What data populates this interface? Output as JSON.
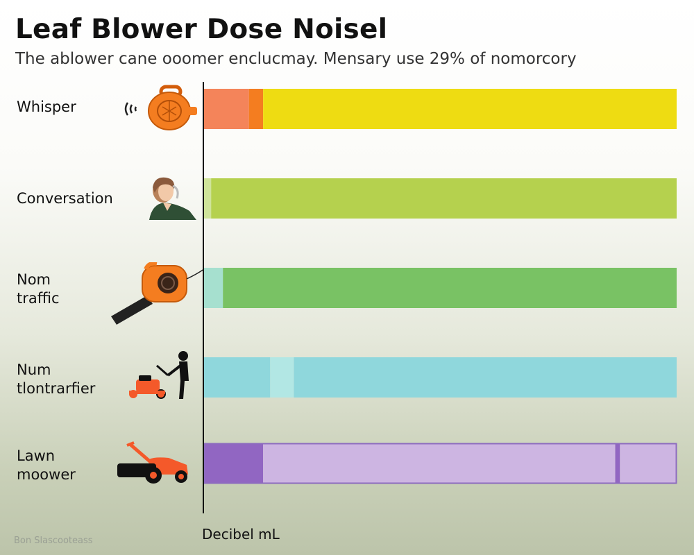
{
  "chart_data": {
    "type": "bar",
    "title": "Leaf Blower Dose Noisel",
    "subtitle": "The ablower cane ooomer enclucmay. Mensary use 29% of nomorcory",
    "xlabel": "Decibel mL",
    "ylabel": "",
    "categories": [
      "Whisper",
      "Conversation",
      "Nom traffic",
      "Num tlontrarfier",
      "Lawn moower"
    ],
    "category_lines": [
      [
        "Whisper"
      ],
      [
        "Conversation"
      ],
      [
        "Nom",
        "traffic"
      ],
      [
        "Num",
        "tlontrarfier"
      ],
      [
        "Lawn",
        "moower"
      ]
    ],
    "series": [
      {
        "name": "segment-1",
        "values": [
          9.5,
          1.5,
          4,
          14,
          12.5
        ]
      },
      {
        "name": "segment-2",
        "values": [
          3,
          0,
          0,
          5,
          0
        ]
      },
      {
        "name": "segment-3",
        "values": [
          87.5,
          98.5,
          96,
          81,
          74.5
        ]
      },
      {
        "name": "segment-4",
        "values": [
          0,
          0,
          0,
          0,
          1
        ]
      },
      {
        "name": "segment-5",
        "values": [
          0,
          0,
          0,
          0,
          12
        ]
      }
    ],
    "colors": [
      [
        "#f4845a",
        "#f47d20",
        "#eedc12",
        "#eedc12",
        "#eedc12"
      ],
      [
        "#cfe49a",
        "#cfe49a",
        "#b5d14e",
        "#b5d14e",
        "#b5d14e"
      ],
      [
        "#a6e0cf",
        "#a6e0cf",
        "#79c264",
        "#79c264",
        "#79c264"
      ],
      [
        "#8fd7dc",
        "#b2e7e4",
        "#8fd7dc",
        "#8fd7dc",
        "#8fd7dc"
      ],
      [
        "#9166c2",
        "#9166c2",
        "#cdb5e2",
        "#9166c2",
        "#cdb5e2"
      ]
    ],
    "bar_outline": [
      null,
      null,
      null,
      null,
      "#8d6cbf"
    ],
    "xlim": [
      0,
      100
    ],
    "grid": false,
    "legend": "none"
  },
  "icons": [
    "leaf-blower-icon",
    "person-icon",
    "leaf-blower-icon",
    "mower-person-icon",
    "lawn-mower-icon"
  ],
  "footer": {
    "watermark": "Bon Slascooteass"
  }
}
